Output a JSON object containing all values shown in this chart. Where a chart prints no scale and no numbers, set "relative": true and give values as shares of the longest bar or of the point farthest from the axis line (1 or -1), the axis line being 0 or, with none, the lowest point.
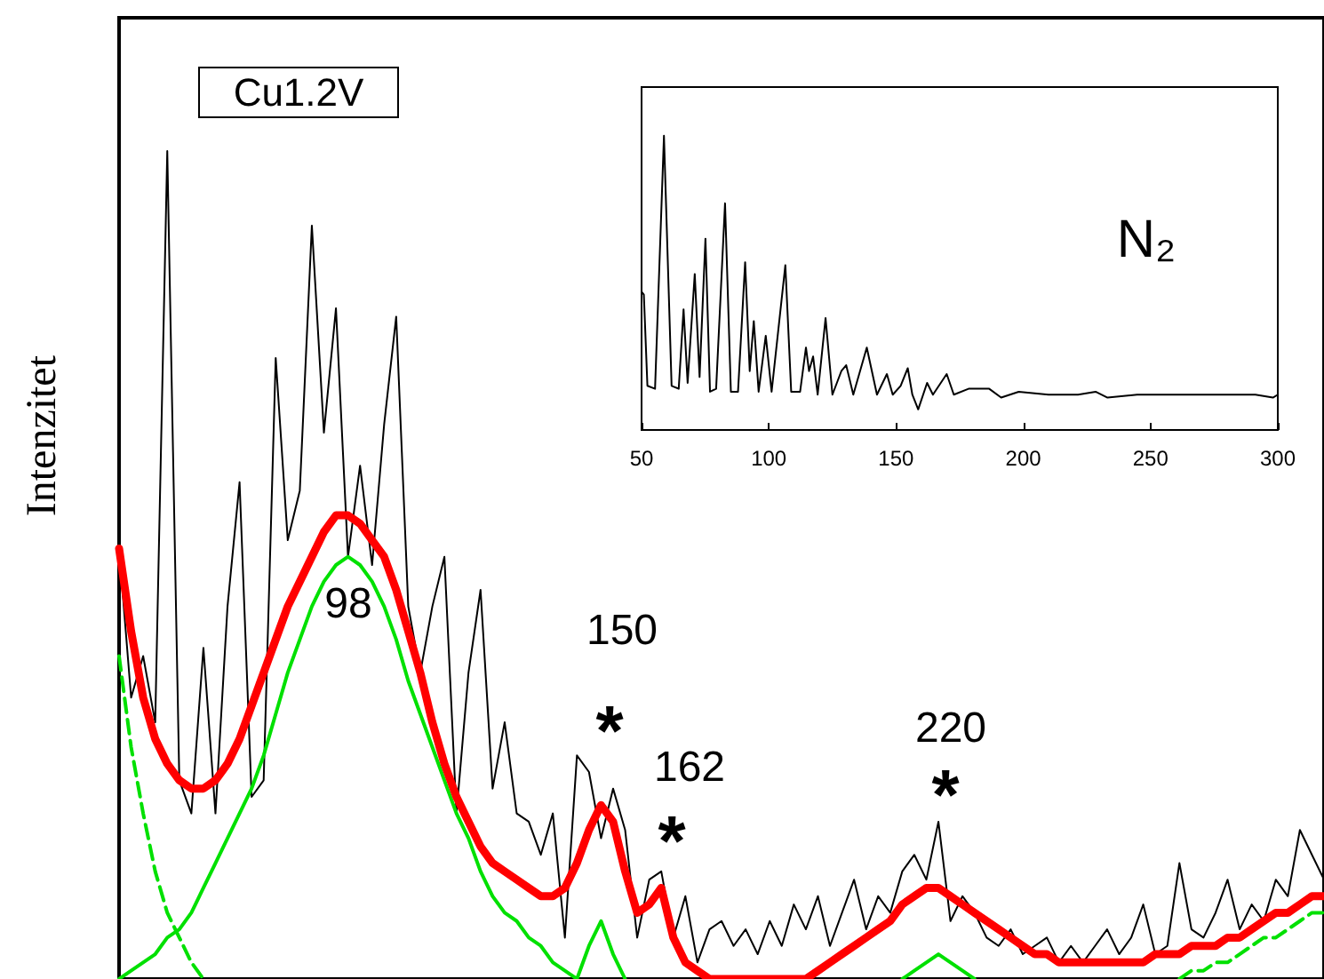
{
  "chart_data": [
    {
      "type": "line",
      "relative": true,
      "ylabel": "Intenzitet",
      "tick_labels": false,
      "categories": [
        null,
        null,
        null,
        null,
        null,
        null,
        null,
        null,
        null,
        null,
        null,
        null,
        null,
        null,
        null,
        null,
        null,
        null,
        null,
        null,
        null,
        null,
        null,
        null,
        null,
        null,
        null,
        null,
        null,
        null,
        null,
        null,
        null,
        null,
        null,
        null,
        null,
        null,
        null,
        null,
        null,
        null,
        null,
        null,
        null,
        null,
        null,
        null,
        null,
        null,
        null,
        null,
        null,
        null,
        null,
        null,
        null,
        null,
        null,
        null,
        null,
        null,
        null,
        null,
        null,
        null,
        null,
        null,
        null,
        null,
        null,
        null,
        null,
        null,
        null,
        null,
        null,
        null,
        null,
        null,
        null,
        null,
        null,
        null,
        null,
        null,
        null,
        null,
        null,
        null,
        null,
        null,
        null,
        null,
        null,
        null,
        null,
        null,
        null,
        null,
        null
      ],
      "annotations": [
        "Cu1.2V",
        "98",
        "150",
        "*",
        "162",
        "*",
        "220",
        "*"
      ],
      "series": [
        {
          "color": "#000000",
          "values": [
            0.52,
            0.34,
            0.39,
            0.31,
            1,
            0.24,
            0.2,
            0.4,
            0.2,
            0.45,
            0.6,
            0.22,
            0.24,
            0.75,
            0.53,
            0.59,
            0.91,
            0.66,
            0.81,
            0.51,
            0.62,
            0.5,
            0.67,
            0.8,
            0.45,
            0.37,
            0.45,
            0.51,
            0.2,
            0.37,
            0.47,
            0.23,
            0.31,
            0.2,
            0.19,
            0.15,
            0.2,
            0.05,
            0.27,
            0.25,
            0.17,
            0.23,
            0.18,
            0.05,
            0.12,
            0.13,
            0.05,
            0.1,
            0.02,
            0.06,
            0.07,
            0.04,
            0.06,
            0.03,
            0.07,
            0.04,
            0.09,
            0.06,
            0.1,
            0.04,
            0.08,
            0.12,
            0.06,
            0.1,
            0.08,
            0.13,
            0.15,
            0.12,
            0.19,
            0.07,
            0.1,
            0.08,
            0.05,
            0.04,
            0.06,
            0.03,
            0.04,
            0.05,
            0.02,
            0.04,
            0.02,
            0.04,
            0.06,
            0.03,
            0.05,
            0.09,
            0.03,
            0.04,
            0.14,
            0.06,
            0.05,
            0.08,
            0.12,
            0.06,
            0.09,
            0.07,
            0.12,
            0.1,
            0.18,
            0.15,
            0.12
          ]
        },
        {
          "color": "#ff0000",
          "values": [
            0.52,
            0.42,
            0.34,
            0.29,
            0.26,
            0.24,
            0.23,
            0.23,
            0.24,
            0.26,
            0.29,
            0.33,
            0.37,
            0.41,
            0.45,
            0.48,
            0.51,
            0.54,
            0.56,
            0.56,
            0.55,
            0.53,
            0.51,
            0.47,
            0.42,
            0.37,
            0.31,
            0.26,
            0.22,
            0.19,
            0.16,
            0.14,
            0.13,
            0.12,
            0.11,
            0.1,
            0.1,
            0.11,
            0.14,
            0.18,
            0.21,
            0.19,
            0.13,
            0.08,
            0.09,
            0.11,
            0.05,
            0.02,
            0.01,
            0,
            0,
            0,
            0,
            0,
            0,
            0,
            0,
            0,
            0.01,
            0.02,
            0.03,
            0.04,
            0.05,
            0.06,
            0.07,
            0.09,
            0.1,
            0.11,
            0.11,
            0.1,
            0.09,
            0.08,
            0.07,
            0.06,
            0.05,
            0.04,
            0.03,
            0.03,
            0.02,
            0.02,
            0.02,
            0.02,
            0.02,
            0.02,
            0.02,
            0.02,
            0.03,
            0.03,
            0.03,
            0.04,
            0.04,
            0.04,
            0.05,
            0.05,
            0.06,
            0.07,
            0.08,
            0.08,
            0.09,
            0.1,
            0.1
          ]
        },
        {
          "color": "#00e000",
          "values": [
            0,
            0.01,
            0.02,
            0.03,
            0.05,
            0.06,
            0.08,
            0.11,
            0.14,
            0.17,
            0.2,
            0.23,
            0.27,
            0.32,
            0.37,
            0.41,
            0.45,
            0.48,
            0.5,
            0.51,
            0.5,
            0.48,
            0.45,
            0.41,
            0.36,
            0.32,
            0.28,
            0.24,
            0.2,
            0.17,
            0.13,
            0.1,
            0.08,
            0.07,
            0.05,
            0.04,
            0.02,
            0.01,
            0,
            0.04,
            0.07,
            0.03,
            0,
            null,
            null,
            null,
            null,
            null,
            null,
            null,
            null,
            null,
            null,
            null,
            null,
            null,
            null,
            null,
            null,
            null,
            null,
            null,
            null,
            null,
            null,
            0,
            0.01,
            0.02,
            0.03,
            0.02,
            0.01,
            0,
            null,
            null,
            null,
            null,
            null,
            null,
            null,
            null,
            null,
            null,
            null,
            null,
            null,
            null,
            null,
            null,
            null,
            null,
            null,
            null,
            null,
            null,
            null,
            null,
            null,
            null,
            null,
            null,
            null
          ]
        },
        {
          "color": "#00e000",
          "line_style": "dashed",
          "values": [
            0.39,
            0.28,
            0.2,
            0.13,
            0.08,
            0.05,
            0.02,
            0,
            null,
            null,
            null,
            null,
            null,
            null,
            null,
            null,
            null,
            null,
            null,
            null,
            null,
            null,
            null,
            null,
            null,
            null,
            null,
            null,
            null,
            null,
            null,
            null,
            null,
            null,
            null,
            null,
            null,
            null,
            null,
            null,
            null,
            null,
            null,
            null,
            null,
            null,
            null,
            null,
            null,
            null,
            null,
            null,
            null,
            null,
            null,
            null,
            null,
            null,
            null,
            null,
            null,
            null,
            null,
            null,
            null,
            null,
            null,
            null,
            null,
            null,
            null,
            null,
            null,
            null,
            null,
            null,
            null,
            null,
            null,
            null,
            null,
            null,
            null,
            null,
            null,
            null,
            null,
            null,
            0,
            0.01,
            0.01,
            0.02,
            0.02,
            0.03,
            0.04,
            0.05,
            0.05,
            0.06,
            0.07,
            0.08,
            0.08
          ]
        }
      ]
    },
    {
      "type": "line",
      "relative": true,
      "xlim": [
        50,
        300
      ],
      "xticks": [
        50,
        100,
        150,
        200,
        250,
        300
      ],
      "tick_labels": "x",
      "annotations": [
        "N₂"
      ],
      "series": [
        {
          "color": "#000000",
          "x": [
            50,
            50.9,
            52.3,
            55.3,
            58.8,
            61.8,
            64.6,
            66.5,
            68.1,
            70.9,
            72.8,
            75.1,
            76.9,
            79.3,
            82.8,
            85.1,
            87.9,
            90.7,
            92.5,
            94.1,
            96,
            98.8,
            101.1,
            106.5,
            108.8,
            112.3,
            114.6,
            115.8,
            117.4,
            119.2,
            122.3,
            125,
            128.5,
            130.4,
            133.2,
            138.5,
            142.5,
            146.4,
            148.7,
            151.8,
            154.6,
            156.4,
            158.7,
            162.2,
            164.5,
            169.9,
            172.7,
            178.5,
            186.6,
            191.3,
            198.2,
            209.9,
            221.5,
            228.4,
            233.1,
            244.7,
            256.3,
            267.9,
            279.6,
            291.2,
            298.1,
            300
          ],
          "values": [
            0.47,
            0.46,
            0.15,
            0.14,
            1,
            0.15,
            0.14,
            0.41,
            0.16,
            0.53,
            0.18,
            0.65,
            0.13,
            0.14,
            0.77,
            0.13,
            0.13,
            0.57,
            0.2,
            0.37,
            0.13,
            0.32,
            0.13,
            0.56,
            0.13,
            0.13,
            0.28,
            0.2,
            0.25,
            0.12,
            0.38,
            0.12,
            0.2,
            0.22,
            0.12,
            0.28,
            0.12,
            0.19,
            0.12,
            0.15,
            0.21,
            0.12,
            0.07,
            0.16,
            0.12,
            0.19,
            0.12,
            0.14,
            0.14,
            0.11,
            0.13,
            0.12,
            0.12,
            0.13,
            0.11,
            0.12,
            0.12,
            0.12,
            0.12,
            0.12,
            0.11,
            0.12
          ]
        }
      ]
    }
  ]
}
